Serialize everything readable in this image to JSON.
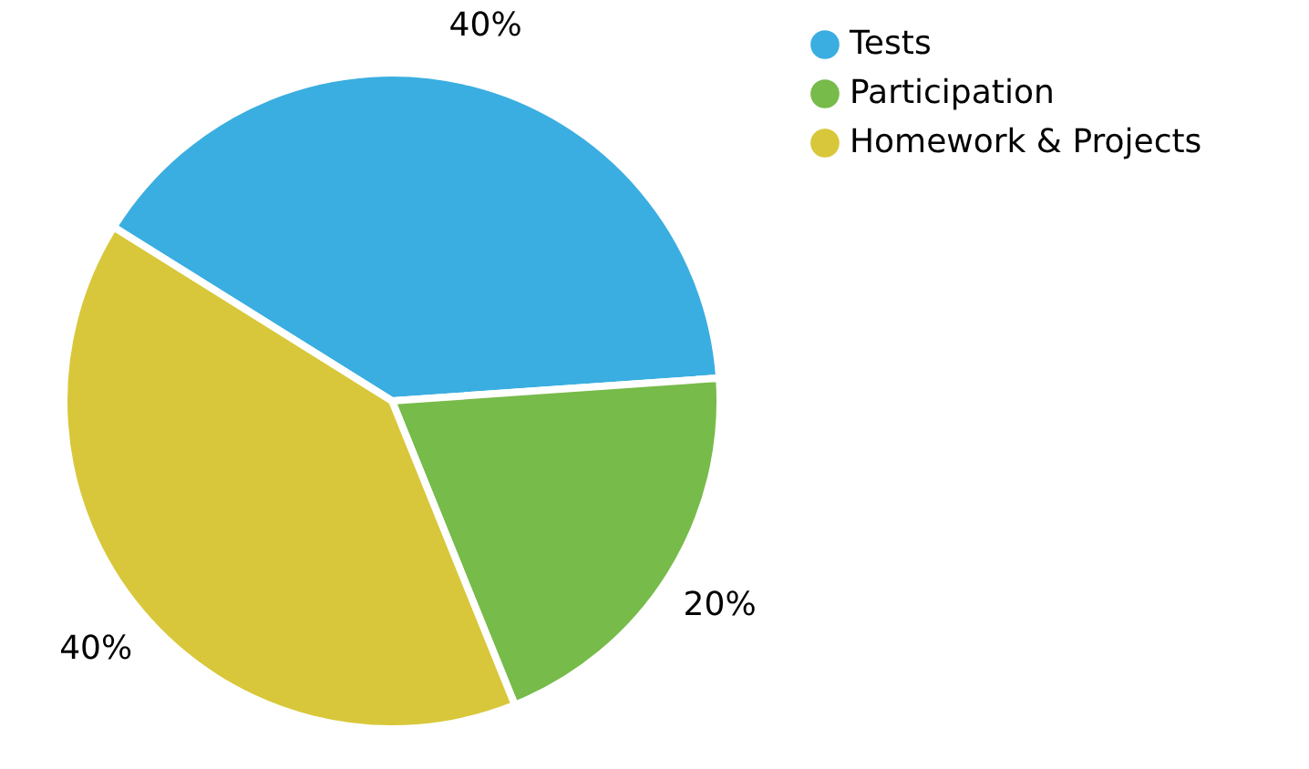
{
  "chart_data": {
    "type": "pie",
    "categories": [
      "Tests",
      "Participation",
      "Homework & Projects"
    ],
    "values": [
      40,
      20,
      40
    ],
    "colors": [
      "#3aaee0",
      "#77bb4a",
      "#d8c73a"
    ],
    "value_labels": [
      "40%",
      "20%",
      "40%"
    ],
    "legend": "right"
  }
}
